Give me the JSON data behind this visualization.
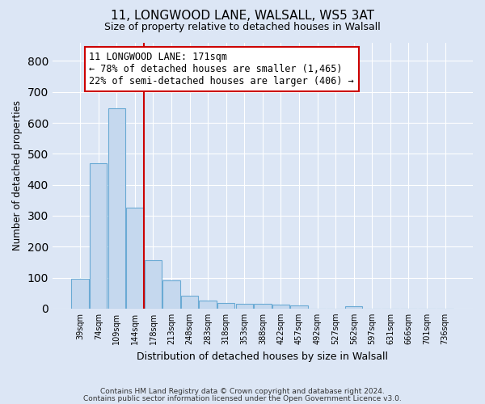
{
  "title1": "11, LONGWOOD LANE, WALSALL, WS5 3AT",
  "title2": "Size of property relative to detached houses in Walsall",
  "xlabel": "Distribution of detached houses by size in Walsall",
  "ylabel": "Number of detached properties",
  "footer1": "Contains HM Land Registry data © Crown copyright and database right 2024.",
  "footer2": "Contains public sector information licensed under the Open Government Licence v3.0.",
  "annotation_line1": "11 LONGWOOD LANE: 171sqm",
  "annotation_line2": "← 78% of detached houses are smaller (1,465)",
  "annotation_line3": "22% of semi-detached houses are larger (406) →",
  "bar_color": "#c5d8ee",
  "bar_edge_color": "#6aaad4",
  "vline_color": "#cc0000",
  "vline_x_idx": 3,
  "categories": [
    "39sqm",
    "74sqm",
    "109sqm",
    "144sqm",
    "178sqm",
    "213sqm",
    "248sqm",
    "283sqm",
    "318sqm",
    "353sqm",
    "388sqm",
    "422sqm",
    "457sqm",
    "492sqm",
    "527sqm",
    "562sqm",
    "597sqm",
    "631sqm",
    "666sqm",
    "701sqm",
    "736sqm"
  ],
  "values": [
    95,
    470,
    648,
    325,
    157,
    91,
    40,
    26,
    17,
    15,
    14,
    13,
    9,
    0,
    0,
    7,
    0,
    0,
    0,
    0,
    0
  ],
  "ylim": [
    0,
    860
  ],
  "yticks": [
    0,
    100,
    200,
    300,
    400,
    500,
    600,
    700,
    800
  ],
  "background_color": "#dce6f5",
  "plot_bg_color": "#dce6f5",
  "grid_color": "#ffffff",
  "title_fontsize": 11,
  "subtitle_fontsize": 9,
  "annotation_fontsize": 8.5,
  "ylabel_fontsize": 8.5,
  "xlabel_fontsize": 9
}
